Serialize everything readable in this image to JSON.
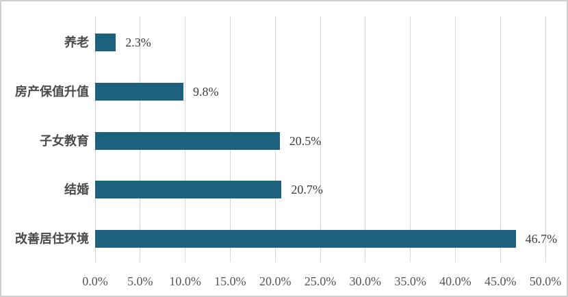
{
  "chart_data": {
    "type": "bar",
    "orientation": "horizontal",
    "title": "",
    "xlabel": "",
    "ylabel": "",
    "categories": [
      "养老",
      "房产保值升值",
      "子女教育",
      "结婚",
      "改善居住环境"
    ],
    "values": [
      2.3,
      9.8,
      20.5,
      20.7,
      46.7
    ],
    "value_labels": [
      "2.3%",
      "9.8%",
      "20.5%",
      "20.7%",
      "46.7%"
    ],
    "xlim": [
      0,
      50
    ],
    "x_ticks": [
      0,
      5,
      10,
      15,
      20,
      25,
      30,
      35,
      40,
      45,
      50
    ],
    "x_tick_labels": [
      "0.0%",
      "5.0%",
      "10.0%",
      "15.0%",
      "20.0%",
      "25.0%",
      "30.0%",
      "35.0%",
      "40.0%",
      "45.0%",
      "50.0%"
    ],
    "grid": "vertical-only",
    "legend": "none",
    "colors": {
      "bar": "#1E617F",
      "gridline": "#D6D6D6",
      "frame_border": "#CFCFCF",
      "category_text": "#4A4A4A",
      "value_text": "#3D3D3D",
      "tick_text": "#555555",
      "background": "#FFFFFF"
    }
  }
}
